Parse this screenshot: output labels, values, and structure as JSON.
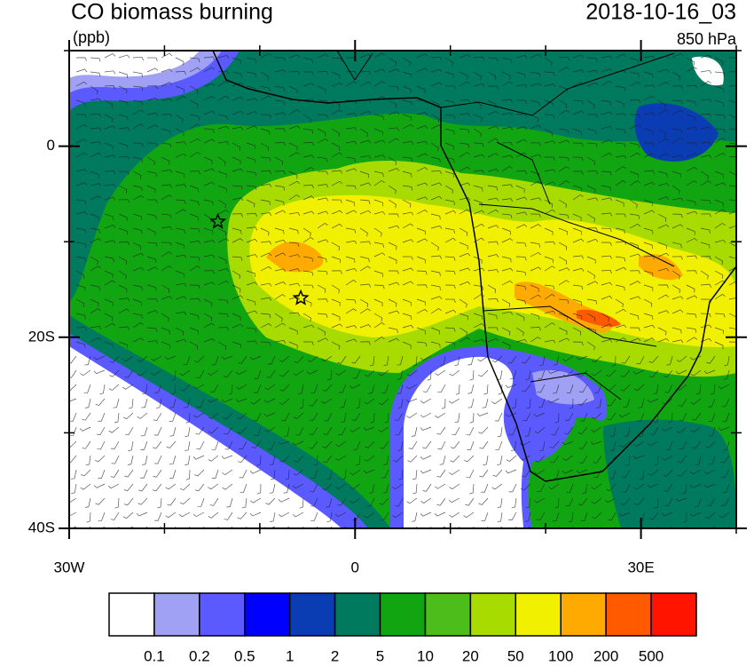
{
  "map": {
    "title": "CO biomass burning",
    "units": "(ppb)",
    "time": "2018-10-16_03",
    "level": "850 hPa",
    "xlim": [
      -30,
      40
    ],
    "ylim": [
      -40,
      10
    ],
    "xticks": [
      {
        "value": -30,
        "label": "30W"
      },
      0,
      {
        "value": 30,
        "label": "30E"
      }
    ],
    "yticks": [
      0,
      {
        "value": -20,
        "label": "20S"
      },
      {
        "value": -40,
        "label": "40S"
      }
    ],
    "xminorticks": [
      -20,
      -10,
      10,
      20,
      40
    ],
    "yminorticks": [
      10,
      -10,
      -30
    ],
    "markers": [
      {
        "lon": -14.4,
        "lat": -7.9
      },
      {
        "lon": -5.7,
        "lat": -15.9
      }
    ],
    "colorbar": {
      "levels": [
        0.1,
        0.2,
        0.5,
        1,
        2,
        5,
        10,
        20,
        50,
        100,
        200,
        500
      ],
      "colors": [
        "#ffffff",
        "#a0a0f5",
        "#5a5aff",
        "#0000ff",
        "#0a3cb4",
        "#007a5e",
        "#12a512",
        "#4dbd1c",
        "#a8dc00",
        "#f0f000",
        "#ffaa00",
        "#ff5a00",
        "#ff1400"
      ]
    }
  }
}
